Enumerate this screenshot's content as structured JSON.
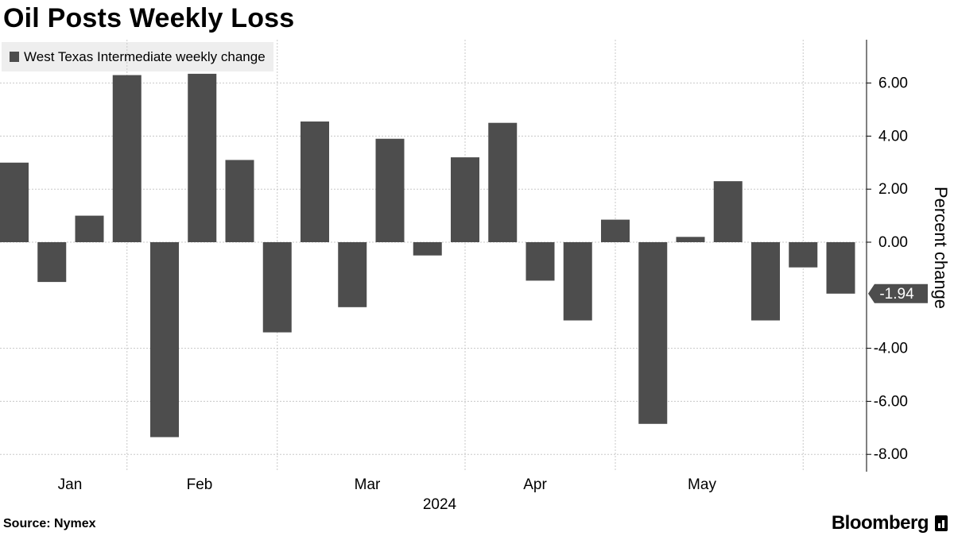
{
  "title": "Oil Posts Weekly Loss",
  "source": "Source: Nymex",
  "brand": "Bloomberg",
  "colors": {
    "bar": "#4d4d4d",
    "grid": "#c8c8c8",
    "legend_bg": "#eeeeee"
  },
  "chart_data": {
    "type": "bar",
    "series": [
      {
        "name": "West Texas Intermediate weekly change",
        "values": [
          3.0,
          -1.5,
          1.0,
          6.3,
          -7.35,
          6.35,
          3.1,
          -3.4,
          4.55,
          -2.45,
          3.9,
          -0.5,
          3.2,
          4.5,
          -1.45,
          -2.95,
          0.85,
          -6.85,
          0.2,
          2.3,
          -2.95,
          -0.95,
          -1.94
        ]
      }
    ],
    "x_tick_labels": [
      "Jan",
      "Feb",
      "Mar",
      "Apr",
      "May"
    ],
    "x_year_label": "2024",
    "ylabel": "Percent change",
    "y_ticks": [
      "6.00",
      "4.00",
      "2.00",
      "0.00",
      "-4.00",
      "-6.00",
      "-8.00"
    ],
    "ylim": [
      -8.0,
      7.5
    ],
    "last_value_label": "-1.94",
    "grid": true,
    "legend_position": "top-left"
  }
}
